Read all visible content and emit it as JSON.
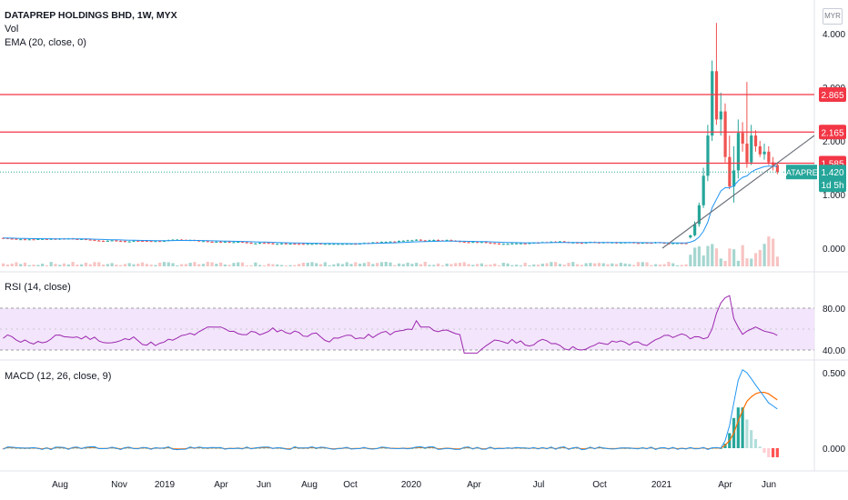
{
  "header": {
    "title": "DATAPREP HOLDINGS BHD, 1W, MYX",
    "vol_label": "Vol",
    "ema_label": "EMA (20, close, 0)",
    "currency": "MYR"
  },
  "price_axis": {
    "ticks": [
      "4.000",
      "3.000",
      "2.000",
      "1.000",
      "0.000"
    ],
    "tick_values": [
      4.0,
      3.0,
      2.0,
      1.0,
      0.0
    ],
    "tags": [
      {
        "label": "2.865",
        "value": 2.865,
        "color": "#f23645"
      },
      {
        "label": "2.165",
        "value": 2.165,
        "color": "#f23645"
      },
      {
        "label": "1.585",
        "value": 1.585,
        "color": "#f23645"
      }
    ],
    "symbol_tag": "DATAPREP",
    "last_price": "1.420",
    "countdown": "1d 5h",
    "accent": "#26a69a"
  },
  "rsi": {
    "label": "RSI (14, close)",
    "ticks": [
      "80.00",
      "40.00"
    ],
    "tick_values": [
      80,
      40
    ]
  },
  "macd": {
    "label": "MACD (12, 26, close, 9)",
    "ticks": [
      "0.500",
      "0.000"
    ],
    "tick_values": [
      0.5,
      0.0
    ]
  },
  "time_axis": [
    "Aug",
    "Nov",
    "2019",
    "Apr",
    "Jun",
    "Aug",
    "Oct",
    "2020",
    "Apr",
    "Jul",
    "Oct",
    "2021",
    "Apr",
    "Jun"
  ],
  "chart_data": {
    "type": "candlestick",
    "symbol": "DATAPREP",
    "interval": "1W",
    "exchange": "MYX",
    "horizontal_levels": [
      2.865,
      2.165,
      1.585
    ],
    "last_price": 1.42,
    "trendline": {
      "from": [
        "2021-02",
        0.0
      ],
      "to": [
        "2021-06",
        2.1
      ]
    },
    "colors": {
      "up": "#26a69a",
      "down": "#ef5350",
      "ema": "#2196f3",
      "rsi": "#9c27b0",
      "macd": "#2196f3",
      "signal": "#ff6d00",
      "level": "#f23645"
    },
    "recent_weeks": {
      "open": [
        0.2,
        0.24,
        0.45,
        0.8,
        1.35,
        2.1,
        3.3,
        2.4,
        2.55,
        1.7,
        1.15,
        1.45,
        2.15,
        1.95,
        1.6,
        2.1,
        1.9,
        1.75,
        1.8,
        1.6,
        1.55
      ],
      "high": [
        0.25,
        0.5,
        0.85,
        1.5,
        2.3,
        3.5,
        4.2,
        2.9,
        2.7,
        2.1,
        1.9,
        2.4,
        2.35,
        3.1,
        2.3,
        2.2,
        2.0,
        1.95,
        1.9,
        1.7,
        1.6
      ],
      "low": [
        0.18,
        0.22,
        0.4,
        0.75,
        1.25,
        2.0,
        2.3,
        2.1,
        1.6,
        1.1,
        0.85,
        1.3,
        1.8,
        1.5,
        1.55,
        1.8,
        1.7,
        1.65,
        1.55,
        1.45,
        1.38
      ],
      "close": [
        0.24,
        0.45,
        0.8,
        1.35,
        2.1,
        3.3,
        2.4,
        2.55,
        1.7,
        1.15,
        1.45,
        2.15,
        1.95,
        1.6,
        2.1,
        1.9,
        1.75,
        1.8,
        1.6,
        1.55,
        1.42
      ]
    },
    "rsi_recent": [
      52,
      60,
      75,
      85,
      90,
      92,
      70,
      62,
      55,
      58,
      60,
      62,
      60,
      58,
      57,
      56,
      54
    ],
    "macd_recent": {
      "macd": [
        0.0,
        0.05,
        0.15,
        0.3,
        0.45,
        0.52,
        0.5,
        0.46,
        0.42,
        0.38,
        0.34,
        0.3,
        0.28,
        0.26
      ],
      "signal": [
        0.0,
        0.02,
        0.05,
        0.1,
        0.18,
        0.25,
        0.31,
        0.34,
        0.36,
        0.37,
        0.37,
        0.36,
        0.34,
        0.32
      ],
      "hist": [
        0.0,
        0.03,
        0.1,
        0.2,
        0.27,
        0.27,
        0.19,
        0.12,
        0.06,
        0.01,
        -0.03,
        -0.06,
        -0.06,
        -0.06
      ]
    }
  }
}
